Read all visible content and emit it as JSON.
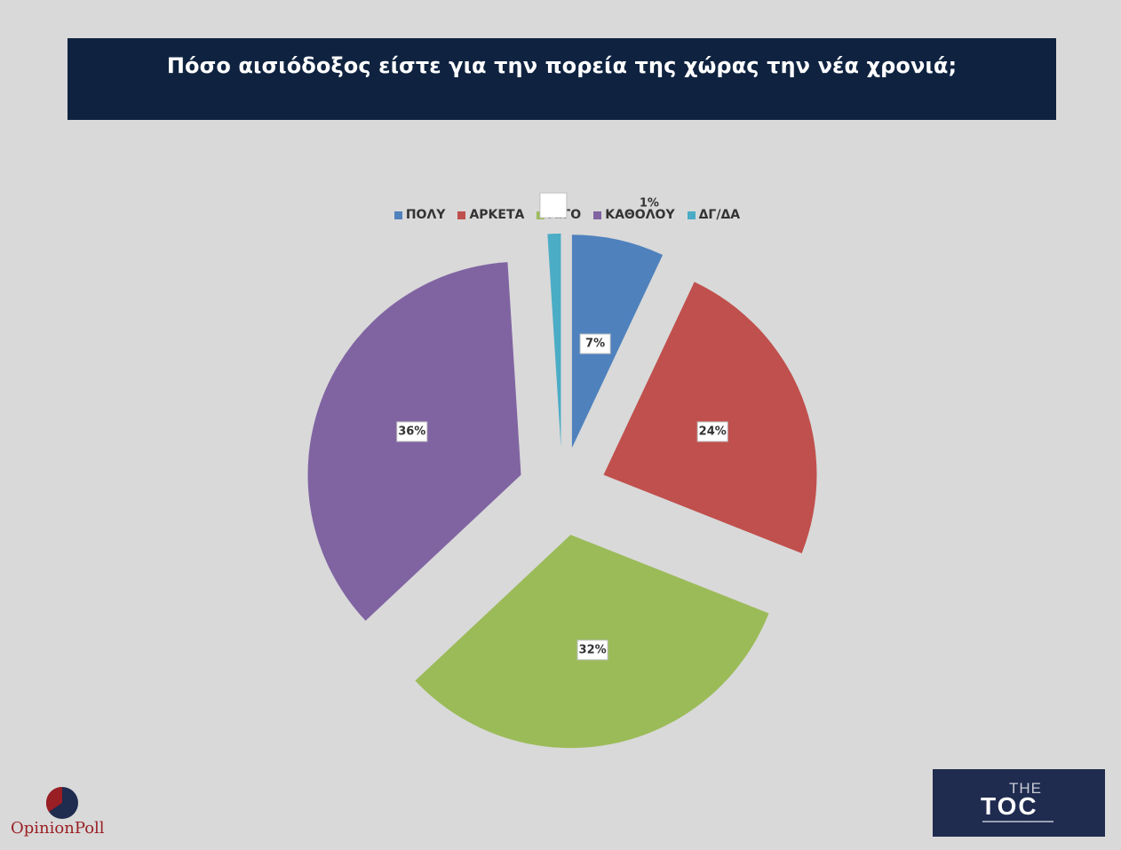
{
  "chart_data": {
    "type": "pie",
    "title": "Πόσο αισιόδοξος είστε για την πορεία της χώρας την νέα χρονιά;",
    "legend_position": "top",
    "slices": [
      {
        "label": "ΠΟΛΥ",
        "value": 7,
        "data_label": "7%",
        "color": "#4f81bd"
      },
      {
        "label": "ΑΡΚΕΤΑ",
        "value": 24,
        "data_label": "24%",
        "color": "#c0504d"
      },
      {
        "label": "ΛΙΓΟ",
        "value": 32,
        "data_label": "32%",
        "color": "#9bbb59"
      },
      {
        "label": "ΚΑΘΟΛΟΥ",
        "value": 36,
        "data_label": "36%",
        "color": "#8064a2"
      },
      {
        "label": "ΔΓ/ΔΑ",
        "value": 1,
        "data_label": "1%",
        "color": "#4bacc6"
      }
    ]
  },
  "logos": {
    "left_text_part1": "Opinion",
    "left_text_part2": "Poll",
    "right_text_top": "THE",
    "right_text_main": "TOC"
  },
  "colors": {
    "title_bg": "#0f2340",
    "background": "#d9d9d9",
    "right_logo_bg": "#1f2b4f",
    "left_logo_red": "#9a1f24",
    "left_logo_blue": "#1f2b4f"
  }
}
